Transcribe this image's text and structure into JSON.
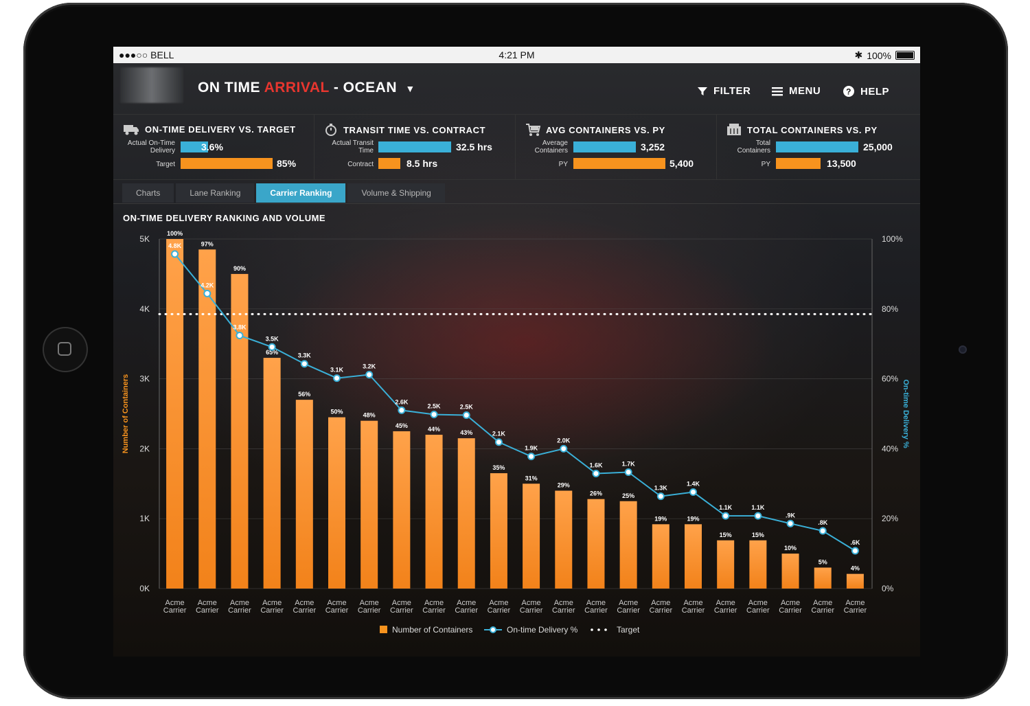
{
  "status_bar": {
    "carrier": "●●●○○ BELL",
    "time": "4:21 PM",
    "battery": "100%"
  },
  "header": {
    "title_part1": "ON TIME",
    "title_part2": "ARRIVAL",
    "title_part3": "- OCEAN",
    "nav": [
      {
        "label": "FILTER",
        "icon": "filter-icon"
      },
      {
        "label": "MENU",
        "icon": "hamburger-icon"
      },
      {
        "label": "HELP",
        "icon": "help-icon"
      }
    ]
  },
  "kpis": [
    {
      "title": "ON-TIME DELIVERY VS. TARGET",
      "icon": "truck-icon",
      "row1_label_a": "Actual On-Time",
      "row1_label_b": "Delivery",
      "row1_value": "3.6%",
      "row1_fraction": 0.3,
      "row2_label": "Target",
      "row2_value": "85%",
      "row2_fraction": 1.0
    },
    {
      "title": "TRANSIT TIME VS. CONTRACT",
      "icon": "stopwatch-icon",
      "row1_label_a": "Actual Transit",
      "row1_label_b": "Time",
      "row1_value": "32.5 hrs",
      "row1_fraction": 1.0,
      "row2_label": "Contract",
      "row2_value": "8.5 hrs",
      "row2_fraction": 0.3
    },
    {
      "title": "AVG CONTAINERS VS. PY",
      "icon": "cart-icon",
      "row1_label_a": "Average",
      "row1_label_b": "Containers",
      "row1_value": "3,252",
      "row1_fraction": 0.68,
      "row2_label": "PY",
      "row2_value": "5,400",
      "row2_fraction": 1.0
    },
    {
      "title": "TOTAL CONTAINERS VS. PY",
      "icon": "container-icon",
      "row1_label_a": "Total",
      "row1_label_b": "Containers",
      "row1_value": "25,000",
      "row1_fraction": 1.0,
      "row2_label": "PY",
      "row2_value": "13,500",
      "row2_fraction": 0.54
    }
  ],
  "tabs": [
    "Charts",
    "Lane Ranking",
    "Carrier Ranking",
    "Volume & Shipping"
  ],
  "active_tab": "Carrier Ranking",
  "colors": {
    "bar": "#f7931e",
    "line": "#3ab0d8",
    "accent_red": "#e8362f",
    "target": "#ffffff"
  },
  "chart_data": {
    "type": "bar",
    "title": "ON-TIME DELIVERY RANKING AND VOLUME",
    "ylabel": "Number of Containers",
    "y2label": "On-time Delivery %",
    "ylim": [
      0,
      5000
    ],
    "y2lim": [
      0,
      100
    ],
    "yticks": [
      "0K",
      "1K",
      "2K",
      "3K",
      "4K",
      "5K"
    ],
    "y2ticks": [
      "0%",
      "20%",
      "40%",
      "60%",
      "80%",
      "100%"
    ],
    "categories": [
      "Acme Carrier",
      "Acme Carrier",
      "Acme Carrier",
      "Acme Carrier",
      "Acme Carrier",
      "Acme Carrier",
      "Acme Carrier",
      "Acme Carrier",
      "Acme Carrier",
      "Acme Carrier",
      "Acme Carrier",
      "Acme Carrier",
      "Acme Carrier",
      "Acme Carrier",
      "Acme Carrier",
      "Acme Carrier",
      "Acme Carrier",
      "Acme Carrier",
      "Acme Carrier",
      "Acme Carrier",
      "Acme Carrier",
      "Acme Carrier"
    ],
    "category_line1": "Acme",
    "category_line2": "Carrier",
    "series": [
      {
        "name": "Number of Containers",
        "axis": "left",
        "kind": "bar",
        "values": [
          5000,
          4850,
          4500,
          3300,
          2700,
          2450,
          2400,
          2250,
          2200,
          2150,
          1650,
          1500,
          1400,
          1280,
          1250,
          920,
          920,
          690,
          690,
          500,
          300,
          210
        ],
        "labels": [
          "100%",
          "97%",
          "90%",
          "65%",
          "56%",
          "50%",
          "48%",
          "45%",
          "44%",
          "43%",
          "35%",
          "31%",
          "29%",
          "26%",
          "25%",
          "19%",
          "19%",
          "15%",
          "15%",
          "10%",
          "5%",
          "4%"
        ]
      },
      {
        "name": "On-time Delivery %",
        "axis": "right",
        "kind": "line",
        "values": [
          95.7,
          84.4,
          72.4,
          69.1,
          64.3,
          60.2,
          61.2,
          51.0,
          49.8,
          49.6,
          41.9,
          37.8,
          40.0,
          32.9,
          33.3,
          26.4,
          27.6,
          20.8,
          20.8,
          18.6,
          16.5,
          10.8
        ],
        "labels": [
          "4.8K",
          "4.2K",
          "3.8K",
          "3.5K",
          "3.3K",
          "3.1K",
          "3.2K",
          "2.6K",
          "2.5K",
          "2.5K",
          "2.1K",
          "1.9K",
          "2.0K",
          "1.6K",
          "1.7K",
          "1.3K",
          "1.4K",
          "1.1K",
          "1.1K",
          ".9K",
          ".8K",
          ".6K"
        ]
      },
      {
        "name": "Target",
        "axis": "right",
        "kind": "dotted",
        "value": 78.5
      }
    ],
    "legend_position": "bottom"
  }
}
